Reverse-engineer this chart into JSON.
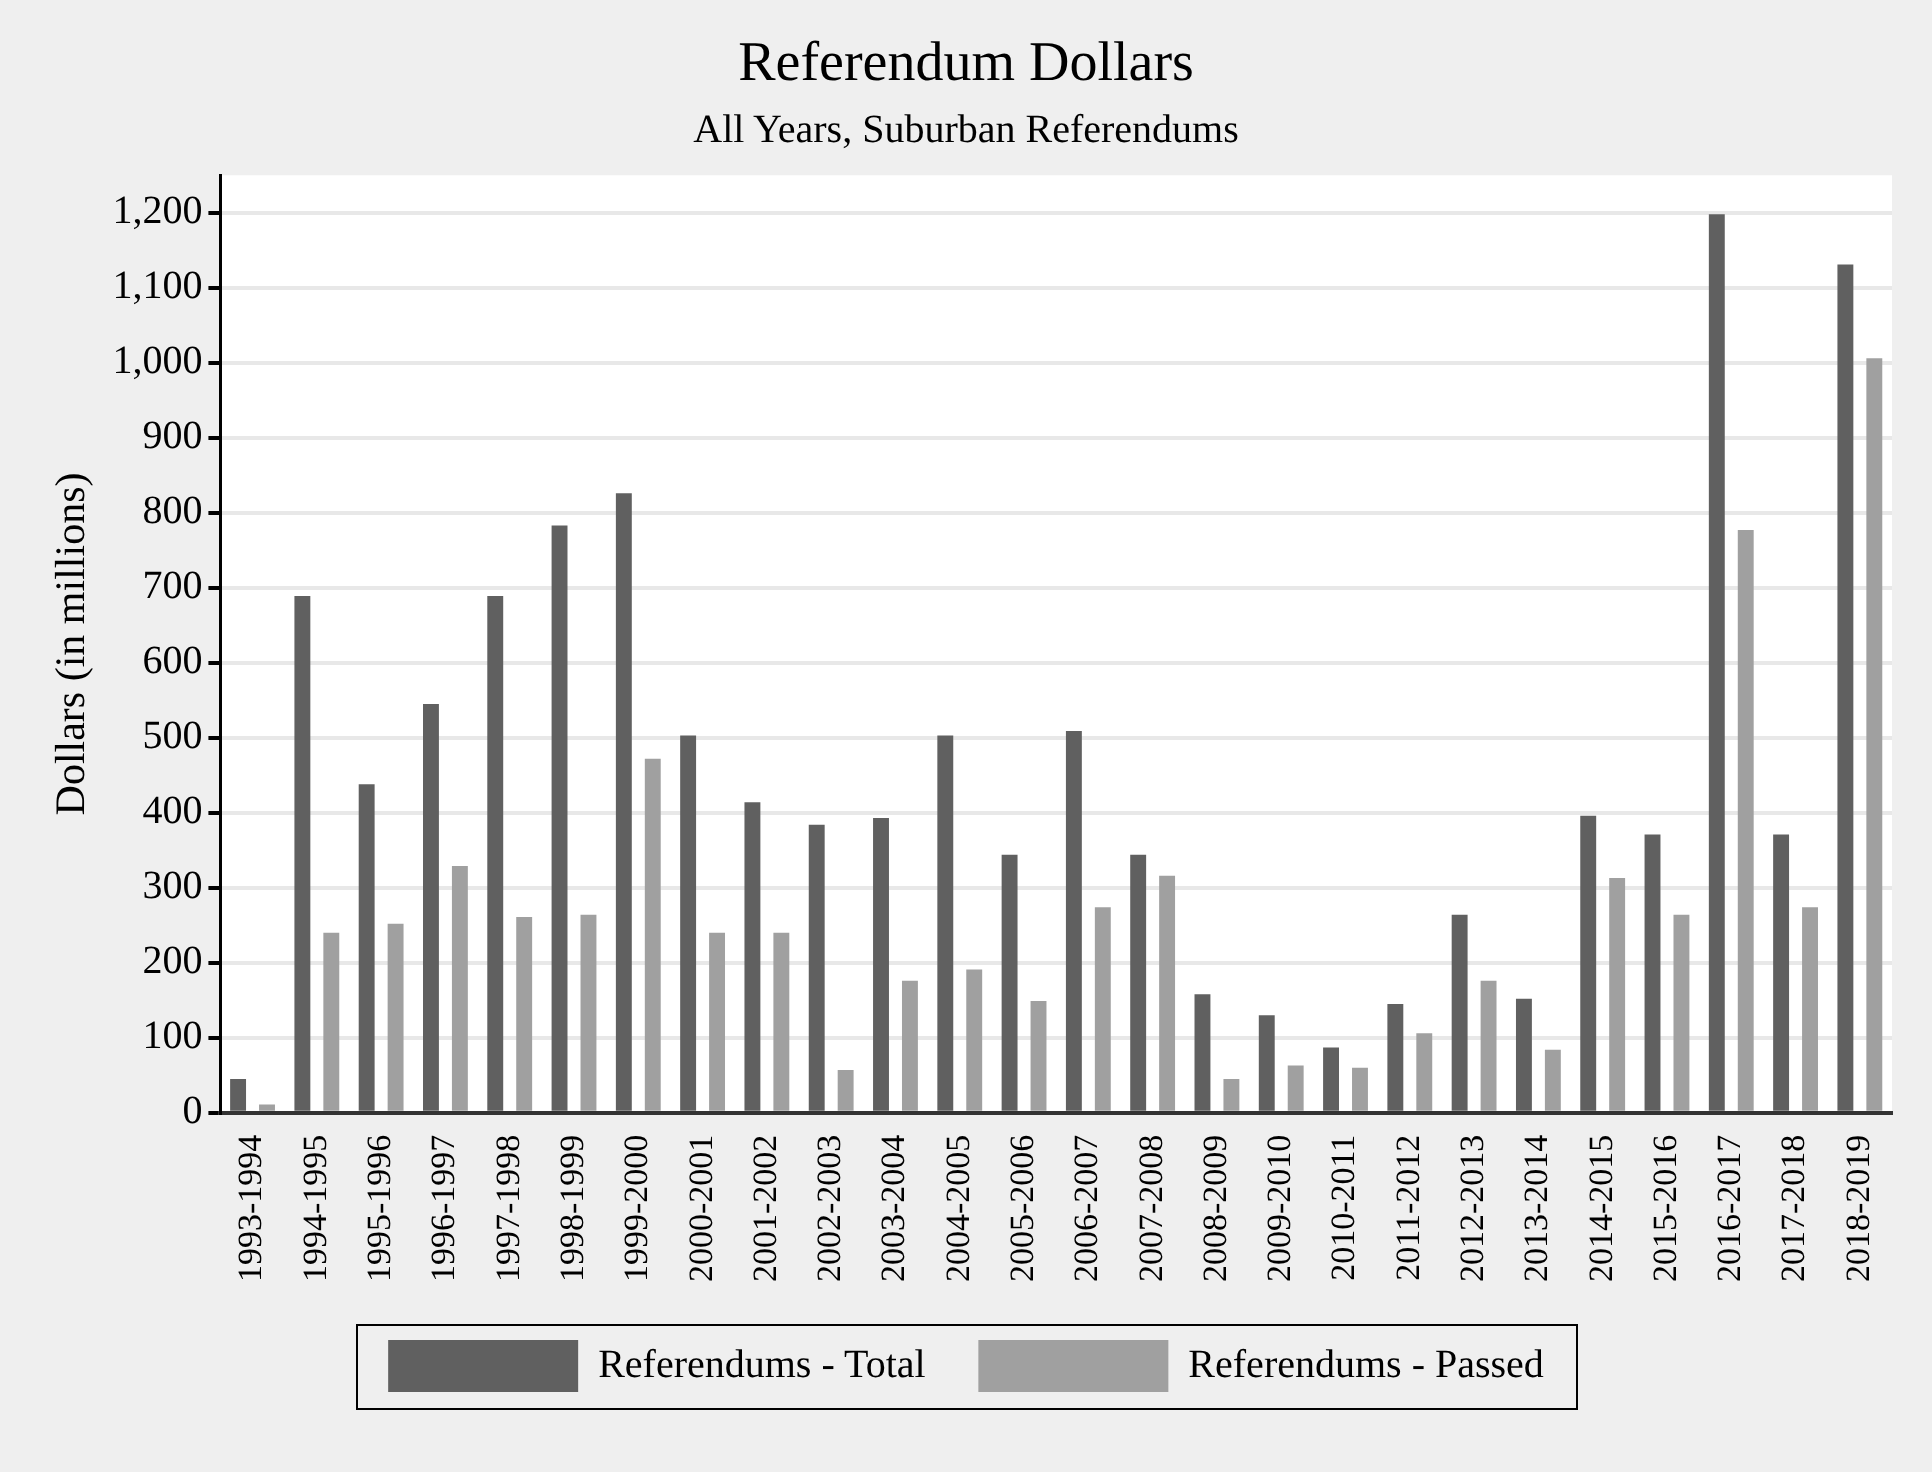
{
  "chart_data": {
    "type": "bar",
    "title": "Referendum Dollars",
    "subtitle": "All Years, Suburban Referendums",
    "ylabel": "Dollars (in millions)",
    "categories": [
      "1993-1994",
      "1994-1995",
      "1995-1996",
      "1996-1997",
      "1997-1998",
      "1998-1999",
      "1999-2000",
      "2000-2001",
      "2001-2002",
      "2002-2003",
      "2003-2004",
      "2004-2005",
      "2005-2006",
      "2006-2007",
      "2007-2008",
      "2008-2009",
      "2009-2010",
      "2010-2011",
      "2011-2012",
      "2012-2013",
      "2013-2014",
      "2014-2015",
      "2015-2016",
      "2016-2017",
      "2017-2018",
      "2018-2019"
    ],
    "series": [
      {
        "name": "Referendums - Total",
        "color": "#606060",
        "values": [
          45,
          689,
          438,
          545,
          689,
          783,
          826,
          503,
          414,
          384,
          393,
          503,
          344,
          509,
          344,
          158,
          130,
          87,
          145,
          264,
          152,
          396,
          371,
          1198,
          371,
          1131
        ]
      },
      {
        "name": "Referendums - Passed",
        "color": "#a0a0a0",
        "values": [
          11,
          240,
          252,
          329,
          261,
          264,
          472,
          240,
          240,
          57,
          176,
          191,
          149,
          274,
          316,
          45,
          63,
          60,
          106,
          176,
          84,
          313,
          264,
          777,
          274,
          1006
        ]
      }
    ],
    "ylim": [
      0,
      1250
    ],
    "yticks": [
      {
        "value": 0,
        "label": "0"
      },
      {
        "value": 100,
        "label": "100"
      },
      {
        "value": 200,
        "label": "200"
      },
      {
        "value": 300,
        "label": "300"
      },
      {
        "value": 400,
        "label": "400"
      },
      {
        "value": 500,
        "label": "500"
      },
      {
        "value": 600,
        "label": "600"
      },
      {
        "value": 700,
        "label": "700"
      },
      {
        "value": 800,
        "label": "800"
      },
      {
        "value": 900,
        "label": "900"
      },
      {
        "value": 1000,
        "label": "1,000"
      },
      {
        "value": 1100,
        "label": "1,100"
      },
      {
        "value": 1200,
        "label": "1,200"
      }
    ],
    "grid": "y",
    "legend": "bottom"
  }
}
